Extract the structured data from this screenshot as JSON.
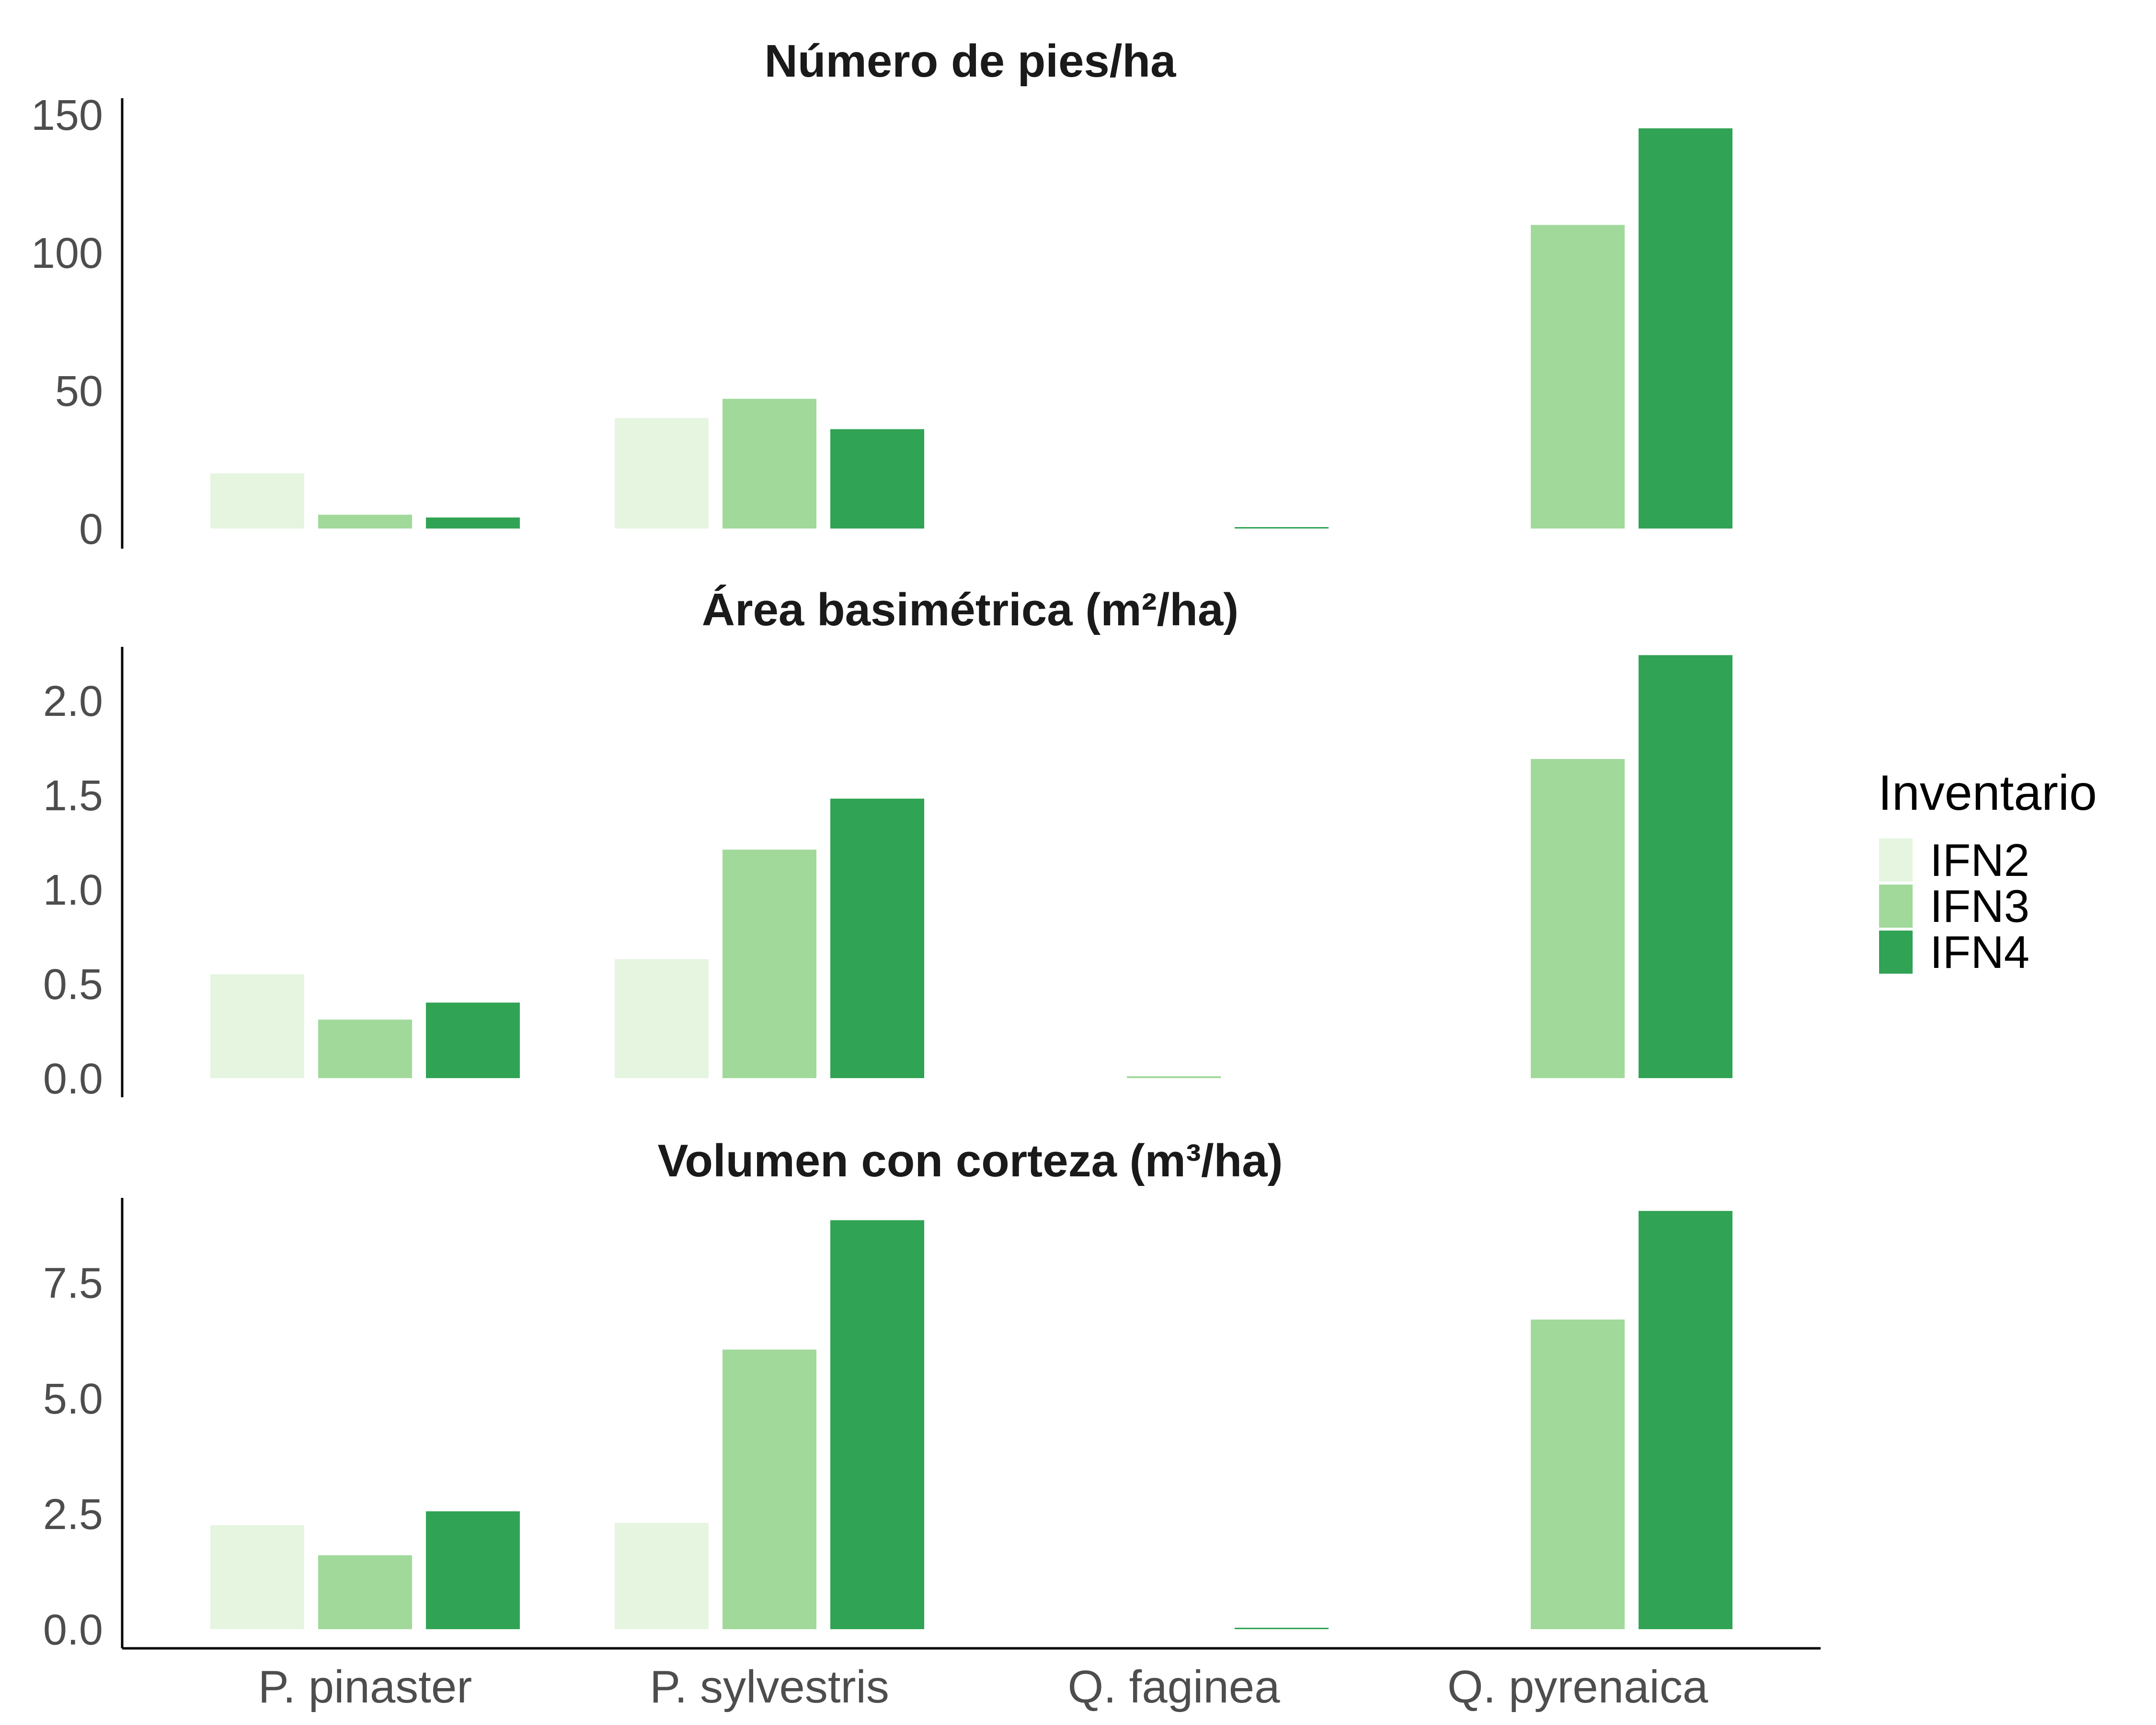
{
  "chart_data": {
    "type": "bar",
    "categories": [
      "P. pinaster",
      "P. sylvestris",
      "Q. faginea",
      "Q. pyrenaica"
    ],
    "legend": {
      "title": "Inventario",
      "placement": "right",
      "entries": [
        "IFN2",
        "IFN3",
        "IFN4"
      ]
    },
    "colors": {
      "IFN2": "#e5f5e0",
      "IFN3": "#a1d99b",
      "IFN4": "#31a354"
    },
    "panels": [
      {
        "title": "Número de pies/ha",
        "ylim": [
          0,
          150
        ],
        "yticks": [
          0,
          50,
          100,
          150
        ],
        "ytick_labels": [
          "0",
          "50",
          "100",
          "150"
        ],
        "series": [
          {
            "name": "IFN2",
            "values": [
              20,
              40,
              0,
              0
            ]
          },
          {
            "name": "IFN3",
            "values": [
              5,
              47,
              0,
              110
            ]
          },
          {
            "name": "IFN4",
            "values": [
              4,
              36,
              0.5,
              145
            ]
          }
        ]
      },
      {
        "title": "Área basimétrica (m²/ha)",
        "ylim": [
          0,
          2.2
        ],
        "yticks": [
          0,
          0.5,
          1,
          1.5,
          2
        ],
        "ytick_labels": [
          "0.0",
          "0.5",
          "1.0",
          "1.5",
          "2.0"
        ],
        "series": [
          {
            "name": "IFN2",
            "values": [
              0.55,
              0.63,
              0,
              0
            ]
          },
          {
            "name": "IFN3",
            "values": [
              0.31,
              1.21,
              0.01,
              1.69
            ]
          },
          {
            "name": "IFN4",
            "values": [
              0.4,
              1.48,
              0,
              2.24
            ]
          }
        ]
      },
      {
        "title": "Volumen con corteza (m³/ha)",
        "ylim": [
          0,
          9
        ],
        "yticks": [
          0,
          2.5,
          5,
          7.5
        ],
        "ytick_labels": [
          "0.0",
          "2.5",
          "5.0",
          "7.5"
        ],
        "series": [
          {
            "name": "IFN2",
            "values": [
              2.25,
              2.3,
              0,
              0
            ]
          },
          {
            "name": "IFN3",
            "values": [
              1.6,
              6.05,
              0,
              6.7
            ]
          },
          {
            "name": "IFN4",
            "values": [
              2.55,
              8.85,
              0.03,
              9.05
            ]
          }
        ]
      }
    ]
  }
}
